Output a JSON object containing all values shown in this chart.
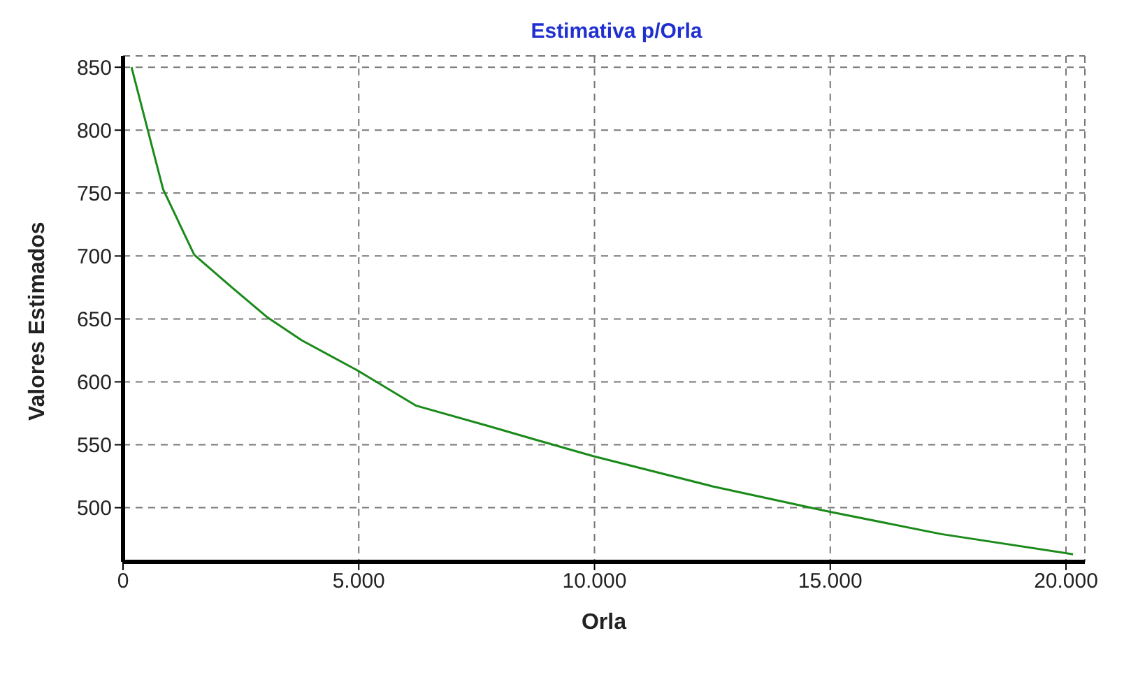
{
  "chart_data": {
    "type": "line",
    "title": "Estimativa p/Orla",
    "xlabel": "Orla",
    "ylabel": "Valores Estimados",
    "x": [
      180,
      850,
      1510,
      2310,
      3070,
      3790,
      4975,
      6220,
      7740,
      8750,
      9970,
      12500,
      14960,
      17360,
      20150
    ],
    "series": [
      {
        "color": "#1a8a1a",
        "values": [
          850,
          753,
          701,
          675,
          651,
          633,
          609,
          581,
          565,
          554,
          541,
          517,
          497,
          479,
          463
        ]
      }
    ],
    "xlim": [
      0,
      20400
    ],
    "ylim": [
      457,
      859
    ],
    "xticks": [
      0,
      {
        "value": 5000,
        "label": "5.000"
      },
      {
        "value": 10000,
        "label": "10.000"
      },
      {
        "value": 15000,
        "label": "15.000"
      },
      {
        "value": 20000,
        "label": "20.000"
      }
    ],
    "yticks": [
      500,
      550,
      600,
      650,
      700,
      750,
      800,
      850
    ],
    "grid": true,
    "legend": false,
    "marker": "none",
    "line_style": "solid"
  }
}
